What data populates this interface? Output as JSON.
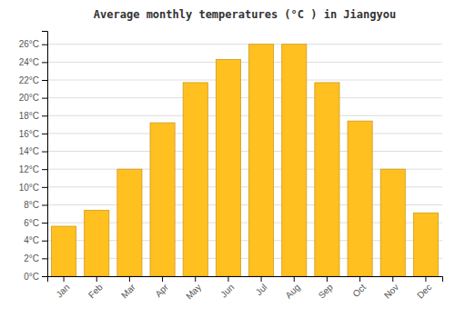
{
  "chart_data": {
    "type": "bar",
    "title": "Average monthly temperatures (°C ) in Jiangyou",
    "categories": [
      "Jan",
      "Feb",
      "Mar",
      "Apr",
      "May",
      "Jun",
      "Jul",
      "Aug",
      "Sep",
      "Oct",
      "Nov",
      "Dec"
    ],
    "values": [
      5.6,
      7.4,
      12.0,
      17.2,
      21.7,
      24.3,
      26.0,
      26.0,
      21.7,
      17.4,
      12.0,
      7.1
    ],
    "color": "#FFC020",
    "ylim": [
      0,
      27.5
    ],
    "yticks": [
      {
        "value": 0,
        "label": "0°C"
      },
      {
        "value": 2,
        "label": "2°C"
      },
      {
        "value": 4,
        "label": "4°C"
      },
      {
        "value": 6,
        "label": "6°C"
      },
      {
        "value": 8,
        "label": "8°C"
      },
      {
        "value": 10,
        "label": "10°C"
      },
      {
        "value": 12,
        "label": "12°C"
      },
      {
        "value": 14,
        "label": "14°C"
      },
      {
        "value": 16,
        "label": "16°C"
      },
      {
        "value": 18,
        "label": "18°C"
      },
      {
        "value": 20,
        "label": "20°C"
      },
      {
        "value": 22,
        "label": "22°C"
      },
      {
        "value": 24,
        "label": "24°C"
      },
      {
        "value": 26,
        "label": "26°C"
      }
    ],
    "grid": true
  }
}
